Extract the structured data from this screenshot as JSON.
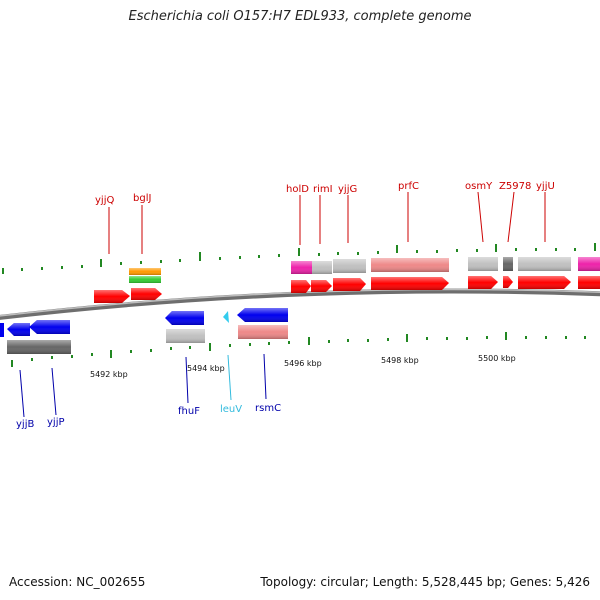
{
  "title": "Escherichia coli O157:H7 EDL933, complete genome",
  "colors": {
    "forward_gene": "#ff0000",
    "reverse_gene": "#0000ee",
    "trna": "#33ccee",
    "label_forward": "#cc0000",
    "label_reverse": "#0000aa",
    "label_trna": "#33bbdd",
    "tick": "#228822",
    "backbone": "#808080",
    "pink_feature": "#ee8888",
    "magenta_feature": "#ee22aa",
    "light_gray_feature": "#c0c0c0",
    "dark_gray_feature": "#666666",
    "orange_feature": "#ff9900",
    "green_feature": "#33cc33"
  },
  "scale_labels": [
    "5492 kbp",
    "5494 kbp",
    "5496 kbp",
    "5498 kbp",
    "5500 kbp"
  ],
  "forward_gene_labels": [
    "yjjQ",
    "bglJ",
    "holD",
    "rimI",
    "yjjG",
    "prfC",
    "osmY",
    "Z5978",
    "yjjU"
  ],
  "reverse_gene_labels": [
    "yjjB",
    "yjjP",
    "fhuF",
    "leuV",
    "rsmC"
  ],
  "footer": {
    "accession": "Accession: NC_002655",
    "summary": "Topology: circular; Length: 5,528,445 bp; Genes: 5,426"
  }
}
